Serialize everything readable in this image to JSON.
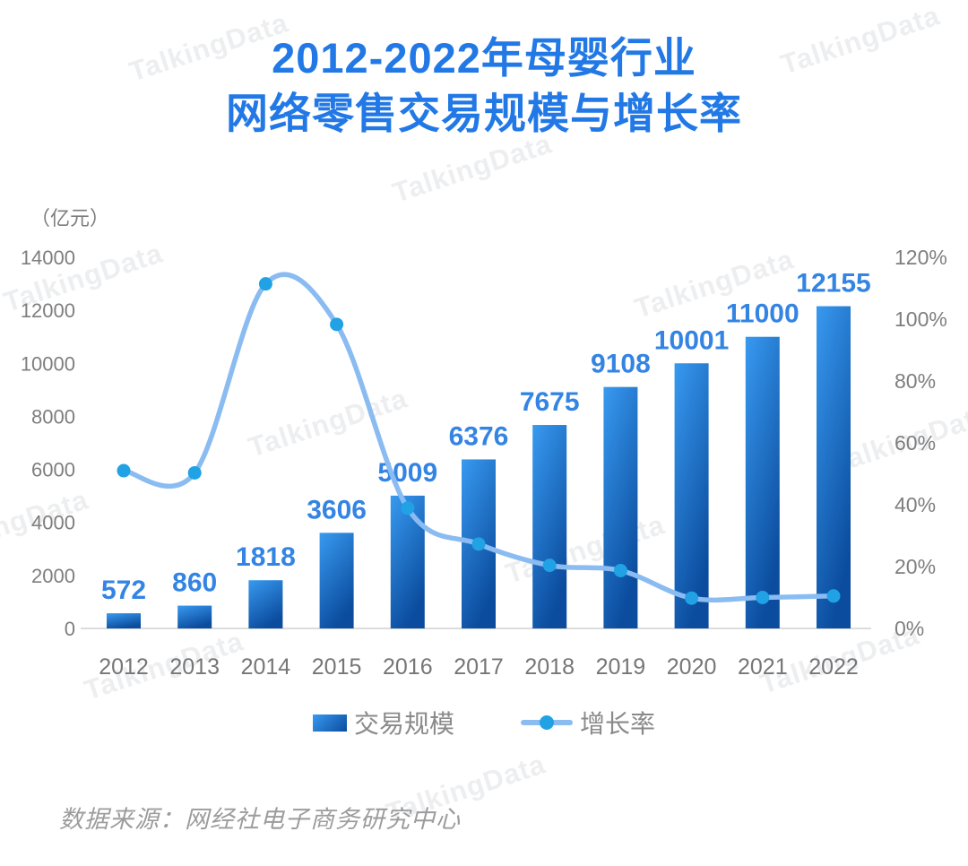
{
  "title": {
    "line1": "2012-2022年母婴行业",
    "line2": "网络零售交易规模与增长率"
  },
  "watermark": "TalkingData",
  "source": "数据来源：网经社电子商务研究中心",
  "colors": {
    "title_blue": "#2279e6",
    "value_label_blue": "#3484e4",
    "bar_gradient_top": "#389af0",
    "bar_gradient_bottom": "#0b4c9e",
    "line_blue": "#8abcf2",
    "dot_blue": "#21a2e5",
    "axis_text_gray": "#7e7e7e",
    "baseline_gray": "#dcdcdc"
  },
  "chart_data": {
    "type": "bar+line",
    "title": "2012-2022年母婴行业网络零售交易规模与增长率",
    "categories": [
      "2012",
      "2013",
      "2014",
      "2015",
      "2016",
      "2017",
      "2018",
      "2019",
      "2020",
      "2021",
      "2022"
    ],
    "series": [
      {
        "name": "交易规模",
        "type": "bar",
        "axis": "left",
        "unit": "亿元",
        "values": [
          572,
          860,
          1818,
          3606,
          5009,
          6376,
          7675,
          9108,
          10001,
          11000,
          12155
        ]
      },
      {
        "name": "增长率",
        "type": "line",
        "axis": "right",
        "unit": "%",
        "values": [
          51.0,
          50.3,
          111.4,
          98.3,
          38.9,
          27.3,
          20.4,
          18.7,
          9.8,
          10.0,
          10.5
        ]
      }
    ],
    "left_axis": {
      "label": "（亿元）",
      "range": [
        0,
        14000
      ],
      "ticks": [
        0,
        2000,
        4000,
        6000,
        8000,
        10000,
        12000,
        14000
      ]
    },
    "right_axis": {
      "range": [
        0,
        120
      ],
      "ticks": [
        "0%",
        "20%",
        "40%",
        "60%",
        "80%",
        "100%",
        "120%"
      ]
    },
    "grid": false,
    "legend_position": "bottom"
  }
}
